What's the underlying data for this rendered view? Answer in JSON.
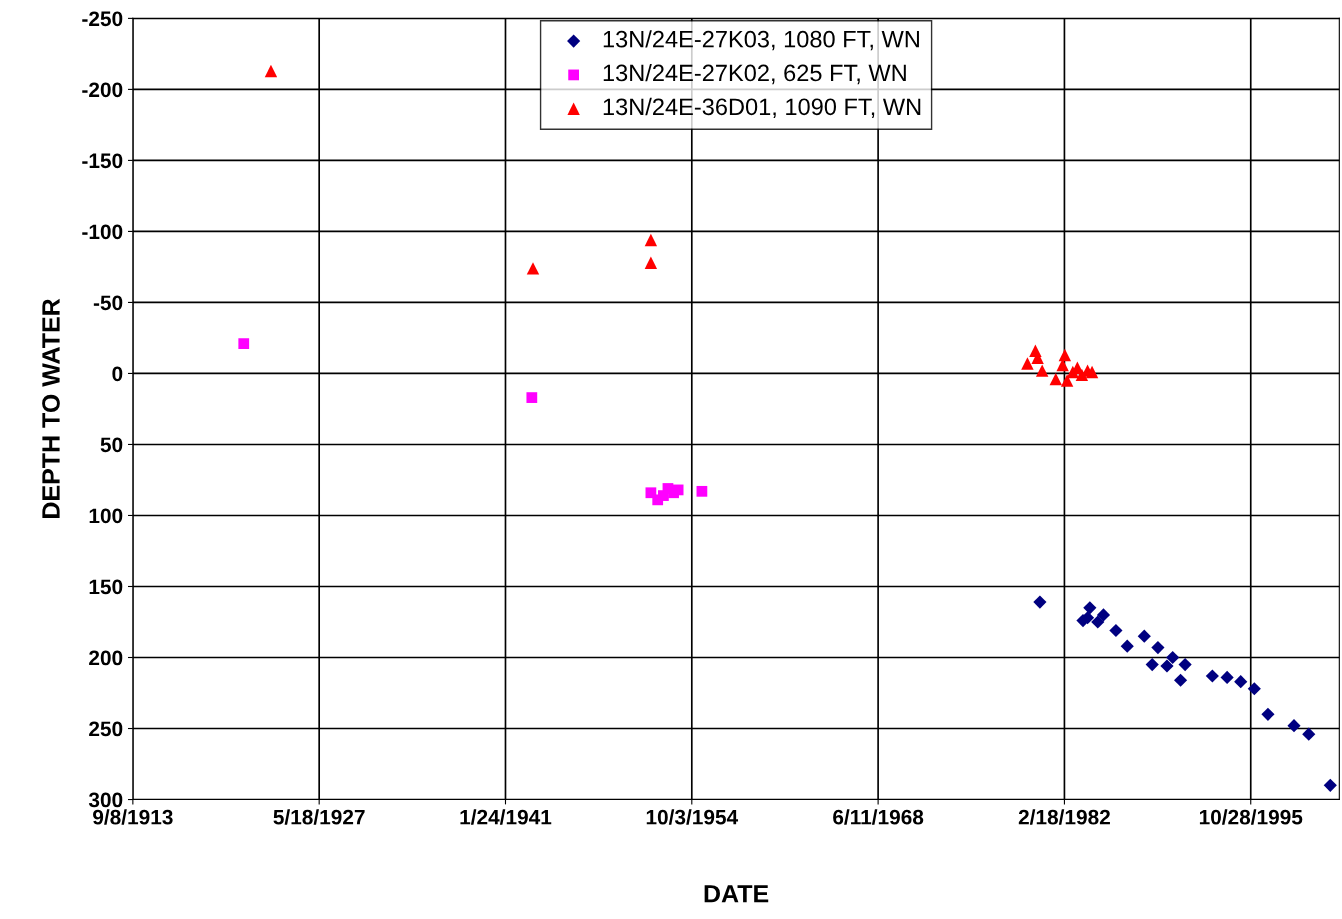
{
  "chart_data": {
    "type": "scatter",
    "xlabel": "DATE",
    "ylabel": "DEPTH TO WATER",
    "xlim": [
      "1913-09-08",
      "2002-05-01"
    ],
    "xticks": [
      {
        "value": "1913-09-08",
        "label": "9/8/1913"
      },
      {
        "value": "1927-05-18",
        "label": "5/18/1927"
      },
      {
        "value": "1941-01-24",
        "label": "1/24/1941"
      },
      {
        "value": "1954-10-03",
        "label": "10/3/1954"
      },
      {
        "value": "1968-06-11",
        "label": "6/11/1968"
      },
      {
        "value": "1982-02-18",
        "label": "2/18/1982"
      },
      {
        "value": "1995-10-28",
        "label": "10/28/1995"
      }
    ],
    "ylim": [
      300,
      -250
    ],
    "yticks": [
      -250,
      -200,
      -150,
      -100,
      -50,
      0,
      50,
      100,
      150,
      200,
      250,
      300
    ],
    "grid": true,
    "legend": "top",
    "series": [
      {
        "name": "13N/24E-27K03, 1080 FT, WN",
        "color": "#000080",
        "marker": "diamond",
        "x": [
          "1980-05",
          "1983-07",
          "1983-11",
          "1984-01",
          "1984-08",
          "1985-01",
          "1985-12",
          "1986-10",
          "1988-01",
          "1988-08",
          "1989-01",
          "1989-09",
          "1990-02",
          "1990-09",
          "1991-01",
          "1993-01",
          "1994-02",
          "1995-02",
          "1996-02",
          "1997-02",
          "1999-01",
          "2000-02",
          "2001-09"
        ],
        "values": [
          161,
          174,
          172,
          165,
          175,
          170,
          181,
          192,
          185,
          205,
          193,
          206,
          200,
          216,
          205,
          213,
          214,
          217,
          222,
          240,
          248,
          254,
          290
        ]
      },
      {
        "name": "13N/24E-27K02, 625 FT, WN",
        "color": "#ff00ff",
        "marker": "square",
        "x": [
          "1921-11",
          "1943-01",
          "1951-10",
          "1952-04",
          "1952-09",
          "1953-01",
          "1953-06",
          "1953-10",
          "1955-07"
        ],
        "values": [
          -21,
          17,
          84,
          89,
          86,
          81,
          84,
          82,
          83
        ]
      },
      {
        "name": "13N/24E-36D01, 1090 FT, WN",
        "color": "#ff0000",
        "marker": "triangle",
        "x": [
          "1923-11",
          "1943-02",
          "1951-10",
          "1951-10",
          "1979-06",
          "1979-10",
          "1980-01",
          "1980-03",
          "1980-07",
          "1981-07",
          "1982-01",
          "1982-03",
          "1982-05",
          "1982-10",
          "1983-02",
          "1983-06",
          "1983-11",
          "1984-03"
        ],
        "values": [
          -213,
          -74,
          -94,
          -78,
          -7,
          null,
          -16,
          -11,
          -2,
          4,
          -6,
          -13,
          5,
          -1,
          -4,
          1,
          -2,
          -1
        ]
      }
    ]
  }
}
